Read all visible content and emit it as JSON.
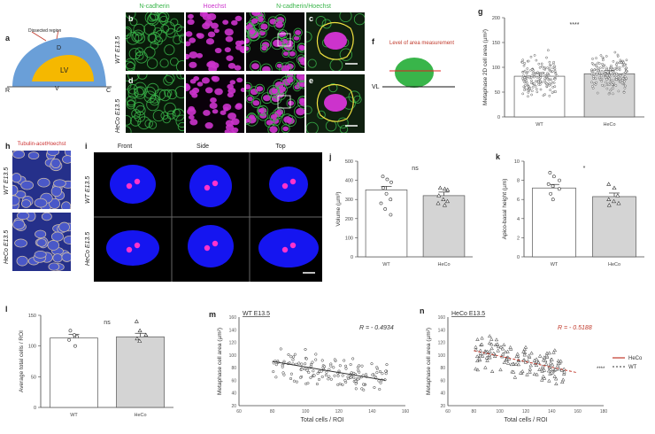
{
  "panels": {
    "a": {
      "letter": "a",
      "dissected": "Dissected region",
      "D": "D",
      "LV": "LV",
      "V": "V",
      "R": "R",
      "C": "C"
    },
    "b": {
      "letter": "b"
    },
    "c": {
      "letter": "c"
    },
    "d": {
      "letter": "d"
    },
    "e": {
      "letter": "e"
    },
    "f": {
      "letter": "f",
      "text": "Level of area measurement",
      "VL": "VL"
    },
    "g": {
      "letter": "g"
    },
    "h": {
      "letter": "h"
    },
    "i": {
      "letter": "i"
    },
    "j": {
      "letter": "j"
    },
    "k": {
      "letter": "k"
    },
    "l": {
      "letter": "l"
    },
    "m": {
      "letter": "m"
    },
    "n": {
      "letter": "n"
    }
  },
  "microscopy": {
    "headers": {
      "ncad": "N-cadherin",
      "hoechst": "Hoechst",
      "merge": "N-cadherin/Hoechst"
    },
    "row_wt": "WT E13.5",
    "row_heco": "HeCo E13.5"
  },
  "panel_h": {
    "header": "Tubulin-acetHoechst",
    "row_wt": "WT E13.5",
    "row_heco": "HeCo E13.5"
  },
  "panel_i": {
    "front": "Front",
    "side": "Side",
    "top": "Top",
    "row_wt": "WT E13.5",
    "row_heco": "HeCo E13.5"
  },
  "colors": {
    "green": "#39b54a",
    "magenta": "#cc33cc",
    "blue": "#1515f0",
    "gray_bar": "#d4d4d4",
    "red_fit": "#c0392b"
  },
  "chart_data": [
    {
      "id": "g",
      "type": "bar",
      "categories": [
        "WT",
        "HeCo"
      ],
      "values": [
        82,
        87
      ],
      "ylabel": "Metaphase 2D cell area (µm²)",
      "ylim": [
        0,
        200
      ],
      "yticks": [
        0,
        50,
        100,
        150,
        200
      ],
      "annotation": "****"
    },
    {
      "id": "j",
      "type": "bar",
      "categories": [
        "WT",
        "HeCo"
      ],
      "values": [
        350,
        320
      ],
      "ylabel": "Volume (µm³)",
      "ylim": [
        0,
        500
      ],
      "yticks": [
        0,
        100,
        200,
        300,
        400,
        500
      ],
      "points": [
        [
          420,
          405,
          390,
          360,
          330,
          300,
          280,
          250,
          220
        ],
        [
          360,
          355,
          350,
          320,
          300,
          290,
          280,
          270
        ]
      ],
      "annotation": "ns"
    },
    {
      "id": "k",
      "type": "bar",
      "categories": [
        "WT",
        "HeCo"
      ],
      "values": [
        7.2,
        6.3
      ],
      "ylabel": "Apico-basal height (µm)",
      "ylim": [
        0,
        10
      ],
      "yticks": [
        0,
        2,
        4,
        6,
        8,
        10
      ],
      "points": [
        [
          8.8,
          8.4,
          8.0,
          7.6,
          7.4,
          7.1,
          6.6,
          6.0
        ],
        [
          7.6,
          7.2,
          6.4,
          6.0,
          5.8,
          5.6,
          5.4
        ]
      ],
      "annotation": "*"
    },
    {
      "id": "l",
      "type": "bar",
      "categories": [
        "WT",
        "HeCo"
      ],
      "values": [
        113,
        115
      ],
      "ylabel": "Average total cells / ROI",
      "ylim": [
        0,
        150
      ],
      "yticks": [
        0,
        50,
        100,
        150
      ],
      "points": [
        [
          125,
          118,
          115,
          110,
          100
        ],
        [
          140,
          125,
          118,
          112,
          108
        ]
      ],
      "annotation": "ns"
    },
    {
      "id": "m",
      "type": "scatter",
      "title": "WT E13.5",
      "xlabel": "Total cells / ROI",
      "ylabel": "Metaphase cell area (µm²)",
      "xlim": [
        60,
        160
      ],
      "ylim": [
        20,
        160
      ],
      "xticks": [
        60,
        80,
        100,
        120,
        140,
        160
      ],
      "yticks": [
        20,
        40,
        60,
        80,
        100,
        120,
        140,
        160
      ],
      "r_label": "R = - 0.4934",
      "fit": [
        [
          80,
          90
        ],
        [
          148,
          60
        ]
      ]
    },
    {
      "id": "n",
      "type": "scatter",
      "title": "HeCo E13.5",
      "xlabel": "Total cells / ROI",
      "ylabel": "Metaphase cell area (µm²)",
      "xlim": [
        60,
        180
      ],
      "ylim": [
        20,
        160
      ],
      "xticks": [
        60,
        80,
        100,
        120,
        140,
        160,
        180
      ],
      "yticks": [
        20,
        40,
        60,
        80,
        100,
        120,
        140,
        160
      ],
      "r_label": "R = - 0.5188",
      "fit": [
        [
          80,
          107
        ],
        [
          160,
          72
        ]
      ],
      "legend": [
        "HeCo",
        "WT"
      ],
      "annotation": "****"
    }
  ]
}
